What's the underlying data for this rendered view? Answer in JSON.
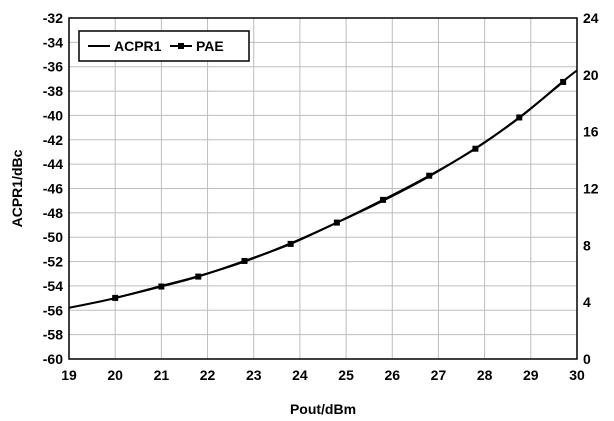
{
  "chart_data": {
    "type": "line",
    "title": "",
    "xlabel": "Pout/dBm",
    "ylabel": "ACPR1/dBc",
    "y2label": "",
    "xlim": [
      19,
      30
    ],
    "ylim": [
      -60,
      -32
    ],
    "y2lim": [
      0,
      24
    ],
    "x_ticks": [
      "19",
      "20",
      "21",
      "22",
      "23",
      "24",
      "25",
      "26",
      "27",
      "28",
      "29",
      "30"
    ],
    "y_ticks": [
      "-32",
      "-34",
      "-36",
      "-38",
      "-40",
      "-42",
      "-44",
      "-46",
      "-48",
      "-50",
      "-52",
      "-54",
      "-56",
      "-58",
      "-60"
    ],
    "y2_ticks": [
      "24",
      "20",
      "16",
      "12",
      "8",
      "4",
      "0"
    ],
    "grid": true,
    "legend_position": "top-left",
    "series": [
      {
        "name": "ACPR1",
        "axis": "left",
        "marker": "none",
        "color": "#000000",
        "x": [
          19.0,
          20.0,
          21.0,
          21.8,
          22.8,
          23.8,
          24.8,
          25.8,
          26.8,
          27.8,
          28.75,
          29.7,
          30.0
        ],
        "y": [
          -55.8,
          -55.0,
          -54.0,
          -53.2,
          -52.0,
          -50.5,
          -48.8,
          -47.0,
          -45.0,
          -42.7,
          -40.2,
          -37.2,
          -36.3
        ]
      },
      {
        "name": "PAE",
        "axis": "right",
        "marker": "square",
        "color": "#000000",
        "x": [
          20.0,
          21.0,
          21.8,
          22.8,
          23.8,
          24.8,
          25.8,
          26.8,
          27.8,
          28.75,
          29.7
        ],
        "y": [
          4.3,
          5.1,
          5.8,
          6.9,
          8.1,
          9.6,
          11.2,
          12.9,
          14.8,
          17.0,
          19.5
        ]
      }
    ]
  }
}
